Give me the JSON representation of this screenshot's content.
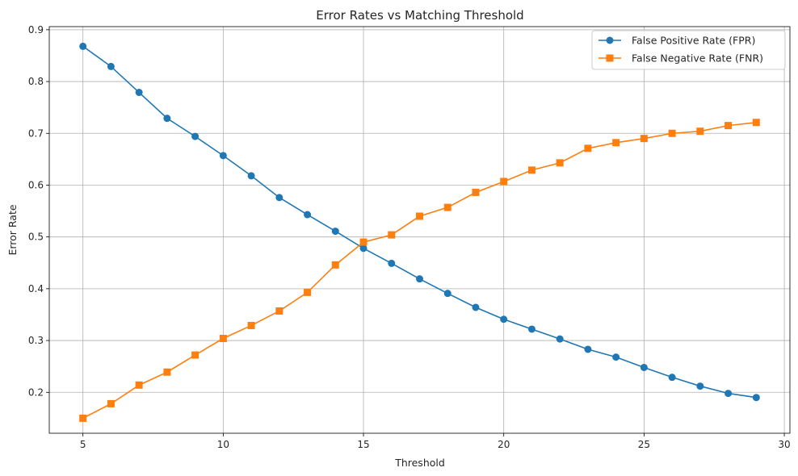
{
  "chart_data": {
    "type": "line",
    "title": "Error Rates vs Matching Threshold",
    "xlabel": "Threshold",
    "ylabel": "Error Rate",
    "xlim": [
      3.8,
      30.2
    ],
    "ylim": [
      0.121,
      0.906
    ],
    "x_ticks": [
      5,
      10,
      15,
      20,
      25,
      30
    ],
    "y_ticks": [
      0.2,
      0.3,
      0.4,
      0.5,
      0.6,
      0.7,
      0.8,
      0.9
    ],
    "grid": true,
    "legend_position": "top-right",
    "x": [
      5,
      6,
      7,
      8,
      9,
      10,
      11,
      12,
      13,
      14,
      15,
      16,
      17,
      18,
      19,
      20,
      21,
      22,
      23,
      24,
      25,
      26,
      27,
      28,
      29
    ],
    "series": [
      {
        "name": "False Positive Rate (FPR)",
        "color": "#1f77b4",
        "marker": "circle",
        "values": [
          0.868,
          0.829,
          0.779,
          0.729,
          0.694,
          0.657,
          0.618,
          0.576,
          0.543,
          0.511,
          0.478,
          0.449,
          0.419,
          0.391,
          0.364,
          0.341,
          0.322,
          0.303,
          0.283,
          0.268,
          0.248,
          0.229,
          0.212,
          0.198,
          0.19
        ]
      },
      {
        "name": "False Negative Rate (FNR)",
        "color": "#ff7f0e",
        "marker": "square",
        "values": [
          0.15,
          0.178,
          0.214,
          0.239,
          0.272,
          0.304,
          0.329,
          0.357,
          0.393,
          0.446,
          0.49,
          0.504,
          0.54,
          0.557,
          0.586,
          0.607,
          0.629,
          0.643,
          0.671,
          0.682,
          0.69,
          0.7,
          0.704,
          0.715,
          0.721
        ]
      }
    ]
  }
}
